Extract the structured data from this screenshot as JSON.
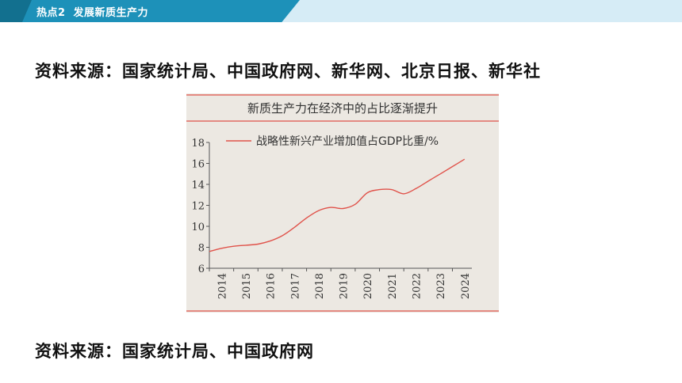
{
  "header": {
    "tag": "热点2",
    "title": "发展新质生产力"
  },
  "sources": {
    "top": "资料来源：国家统计局、中国政府网、新华网、北京日报、新华社",
    "bottom": "资料来源：国家统计局、中国政府网"
  },
  "colors": {
    "header_tab": "#1d91b9",
    "header_bar": "#d6ecf6",
    "chart_bg": "#ece8e2",
    "rule": "#e0524a",
    "series": "#e0524a"
  },
  "chart_data": {
    "type": "line",
    "title": "新质生产力在经济中的占比逐渐提升",
    "legend_position": "top",
    "x": [
      2014,
      2015,
      2016,
      2017,
      2018,
      2019,
      2020,
      2021,
      2022,
      2023,
      2024
    ],
    "xticks": [
      "2014",
      "2015",
      "2016",
      "2017",
      "2018",
      "2019",
      "2020",
      "2021",
      "2022",
      "2023",
      "2024"
    ],
    "yticks": [
      6,
      8,
      10,
      12,
      14,
      16,
      18
    ],
    "ylim": [
      6,
      18
    ],
    "grid": false,
    "series": [
      {
        "name": "战略性新兴产业增加值占GDP比重/%",
        "x": [
          2014.0,
          2014.5,
          2015.0,
          2015.5,
          2016.0,
          2016.5,
          2017.0,
          2017.5,
          2018.0,
          2018.5,
          2019.0,
          2019.5,
          2020.0,
          2020.5,
          2021.0,
          2021.5,
          2022.0,
          2022.5,
          2023.0,
          2023.5,
          2024.0,
          2024.5
        ],
        "values": [
          7.6,
          7.9,
          8.1,
          8.2,
          8.3,
          8.6,
          9.1,
          9.9,
          10.8,
          11.5,
          11.8,
          11.7,
          12.1,
          13.2,
          13.5,
          13.5,
          13.1,
          13.6,
          14.3,
          15.0,
          15.7,
          16.4
        ]
      }
    ]
  }
}
